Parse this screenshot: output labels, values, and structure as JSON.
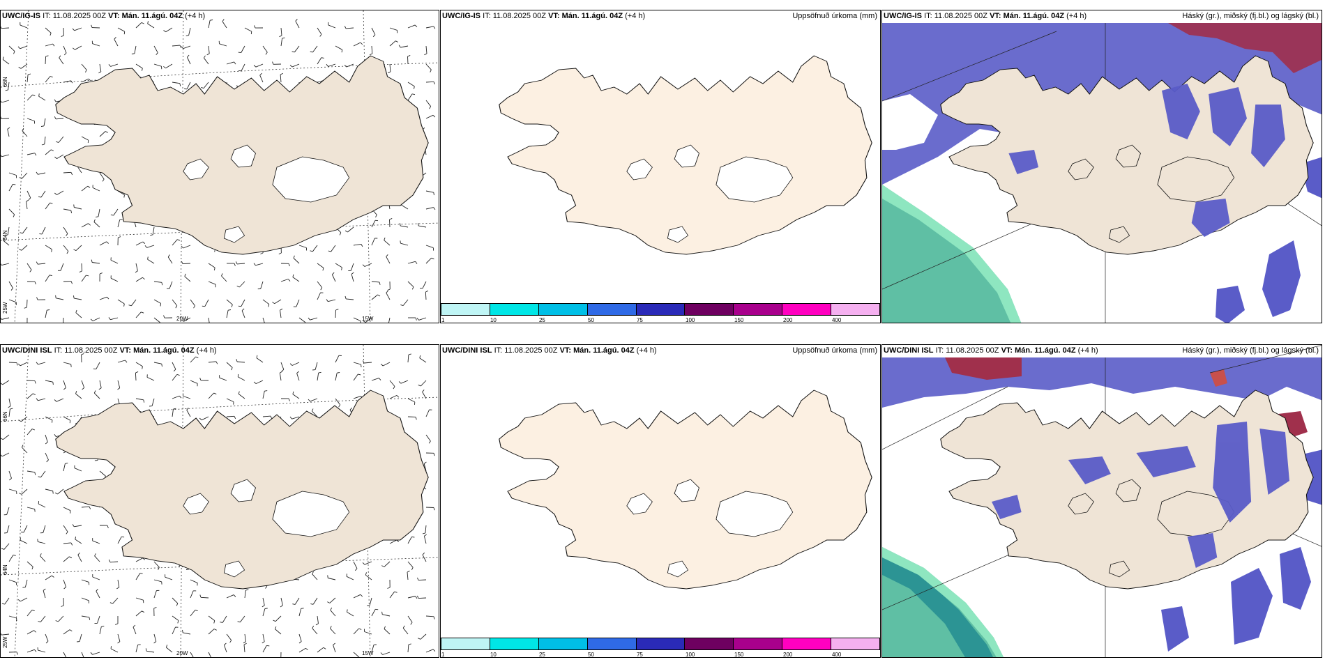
{
  "colors": {
    "land": "#efe4d6",
    "land_light": "#fcf0e2",
    "low_cloud": "#5a5cc8",
    "high_cloud": "#a0304c",
    "mid_cloud": "#5fbfa4"
  },
  "rows": [
    {
      "model": "UWC/IG-IS",
      "it_label": "IT:",
      "it_value": "11.08.2025 00Z",
      "vt_label": "VT:",
      "vt_value": "Mán. 11.ágú. 04Z",
      "lead": "(+4 h)"
    },
    {
      "model": "UWC/DINI ISL",
      "it_label": "IT:",
      "it_value": "11.08.2025 00Z",
      "vt_label": "VT:",
      "vt_value": "Mán. 11.ágú. 04Z",
      "lead": "(+4 h)"
    }
  ],
  "titles": {
    "precip": "Uppsöfnuð úrkoma (mm)",
    "clouds": "Háský (gr.), miðský (fj.bl.) og lágský (bl.)"
  },
  "lat_labels": [
    "66N",
    "64N",
    "25W"
  ],
  "lon_labels": [
    "20W",
    "15W"
  ],
  "colorbar": {
    "ticks": [
      "1",
      "10",
      "25",
      "50",
      "75",
      "100",
      "150",
      "200",
      "400"
    ],
    "colors": [
      "#bff5f5",
      "#00e6e6",
      "#00bfe6",
      "#2f6ae6",
      "#2a2ab8",
      "#6e0060",
      "#a8008c",
      "#ff00c0",
      "#f5b0f0"
    ]
  }
}
